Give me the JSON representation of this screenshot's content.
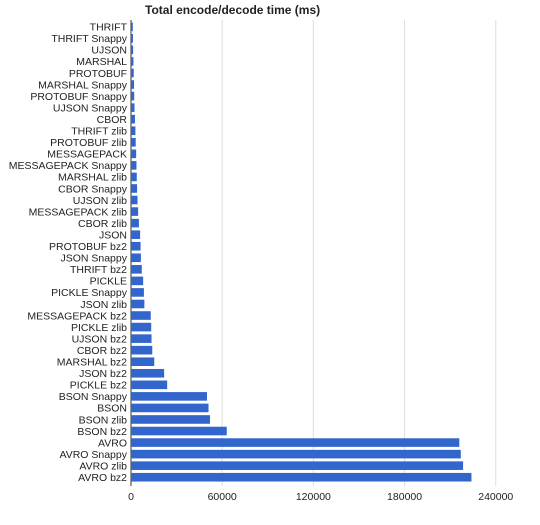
{
  "chart_data": {
    "type": "bar",
    "orientation": "horizontal",
    "title": "Total encode/decode time (ms)",
    "xlabel": "",
    "ylabel": "",
    "xlim": [
      0,
      252000
    ],
    "xticks": [
      0,
      60000,
      120000,
      180000,
      240000
    ],
    "grid": true,
    "legend": "none",
    "bar_color": "#3366cc",
    "categories": [
      "THRIFT",
      "THRIFT Snappy",
      "UJSON",
      "MARSHAL",
      "PROTOBUF",
      "MARSHAL Snappy",
      "PROTOBUF Snappy",
      "UJSON Snappy",
      "CBOR",
      "THRIFT zlib",
      "PROTOBUF zlib",
      "MESSAGEPACK",
      "MESSAGEPACK Snappy",
      "MARSHAL zlib",
      "CBOR Snappy",
      "UJSON zlib",
      "MESSAGEPACK zlib",
      "CBOR zlib",
      "JSON",
      "PROTOBUF bz2",
      "JSON Snappy",
      "THRIFT bz2",
      "PICKLE",
      "PICKLE Snappy",
      "JSON zlib",
      "MESSAGEPACK bz2",
      "PICKLE zlib",
      "UJSON bz2",
      "CBOR bz2",
      "MARSHAL bz2",
      "JSON bz2",
      "PICKLE bz2",
      "BSON Snappy",
      "BSON",
      "BSON zlib",
      "BSON bz2",
      "AVRO",
      "AVRO Snappy",
      "AVRO zlib",
      "AVRO bz2"
    ],
    "values": [
      1200,
      1300,
      1400,
      1600,
      1800,
      2000,
      2100,
      2300,
      2600,
      2900,
      3100,
      3400,
      3600,
      3800,
      4000,
      4300,
      4700,
      5200,
      6000,
      6300,
      6500,
      7100,
      8000,
      8500,
      8800,
      13000,
      13300,
      13500,
      14000,
      15300,
      21800,
      23800,
      50000,
      51000,
      52000,
      63000,
      216000,
      217000,
      218500,
      224000
    ]
  }
}
